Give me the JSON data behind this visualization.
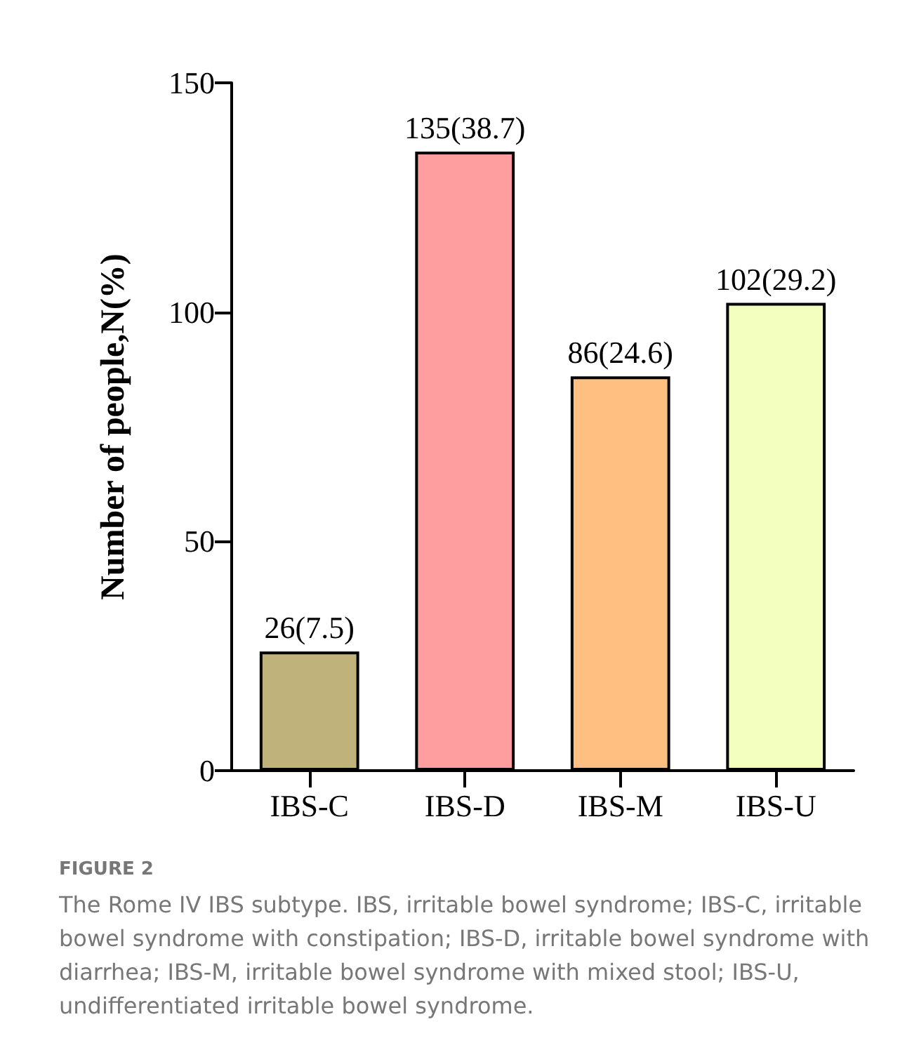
{
  "chart_data": {
    "type": "bar",
    "ylabel": "Number of people,N(%)",
    "categories": [
      "IBS-C",
      "IBS-D",
      "IBS-M",
      "IBS-U"
    ],
    "values": [
      26,
      135,
      86,
      102
    ],
    "colors": [
      "#bfb37b",
      "#ff9d9f",
      "#ffbf80",
      "#f2ffbf"
    ],
    "value_labels": [
      "26(7.5)",
      "135(38.7)",
      "86(24.6)",
      "102(29.2)"
    ],
    "ylim": [
      0,
      150
    ],
    "yticks": [
      0,
      50,
      100,
      150
    ],
    "grid": false,
    "annotations": [
      "FIGURE 2",
      "The Rome IV IBS subtype. IBS, irritable bowel syndrome; IBS-C, irritable bowel syndrome with constipation; IBS-D, irritable bowel syndrome with diarrhea; IBS-M, irritable bowel syndrome with mixed stool; IBS-U, undifferentiated irritable bowel syndrome."
    ]
  }
}
